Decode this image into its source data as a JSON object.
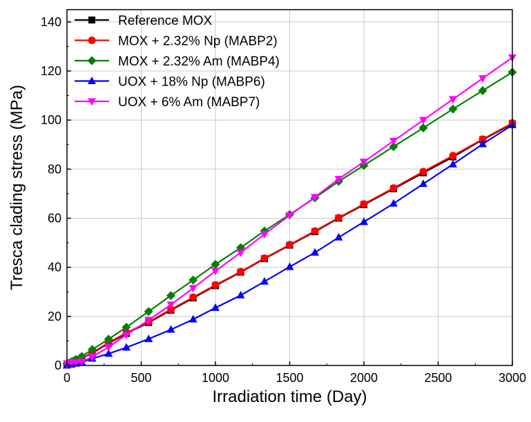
{
  "chart_data": {
    "type": "line",
    "xlabel": "Irradiation time (Day)",
    "ylabel": "Tresca clading stress (MPa)",
    "xlim": [
      0,
      3000
    ],
    "ylim": [
      0,
      145
    ],
    "xticks": [
      0,
      500,
      1000,
      1500,
      2000,
      2500,
      3000
    ],
    "yticks": [
      0,
      20,
      40,
      60,
      80,
      100,
      120,
      140
    ],
    "xtick_labels": [
      "0",
      "500",
      "1000",
      "1500",
      "2000",
      "2500",
      "3000"
    ],
    "ytick_labels": [
      "0",
      "20",
      "40",
      "60",
      "80",
      "100",
      "120",
      "140"
    ],
    "grid": true,
    "legend_position": "top-left",
    "series": [
      {
        "name": "Reference MOX",
        "color": "#000000",
        "marker": "square",
        "points": [
          [
            0,
            0.5
          ],
          [
            30,
            1.2
          ],
          [
            60,
            2
          ],
          [
            100,
            3
          ],
          [
            170,
            5
          ],
          [
            280,
            9
          ],
          [
            400,
            13
          ],
          [
            550,
            17.5
          ],
          [
            700,
            22.5
          ],
          [
            850,
            27.5
          ],
          [
            1000,
            32.5
          ],
          [
            1170,
            38
          ],
          [
            1330,
            43.5
          ],
          [
            1500,
            49
          ],
          [
            1670,
            54.5
          ],
          [
            1830,
            60
          ],
          [
            2000,
            65.5
          ],
          [
            2200,
            72
          ],
          [
            2400,
            78.5
          ],
          [
            2600,
            85
          ],
          [
            2800,
            92
          ],
          [
            3000,
            98.5
          ]
        ]
      },
      {
        "name": "MOX + 2.32% Np (MABP2)",
        "color": "#ff0000",
        "marker": "circle",
        "points": [
          [
            0,
            0.5
          ],
          [
            30,
            1.2
          ],
          [
            60,
            2
          ],
          [
            100,
            3
          ],
          [
            170,
            5.2
          ],
          [
            280,
            9.3
          ],
          [
            400,
            13.3
          ],
          [
            550,
            17.8
          ],
          [
            700,
            22.8
          ],
          [
            850,
            27.8
          ],
          [
            1000,
            32.8
          ],
          [
            1170,
            38.2
          ],
          [
            1330,
            43.7
          ],
          [
            1500,
            49.2
          ],
          [
            1670,
            54.8
          ],
          [
            1830,
            60.2
          ],
          [
            2000,
            65.8
          ],
          [
            2200,
            72.3
          ],
          [
            2400,
            79
          ],
          [
            2600,
            85.5
          ],
          [
            2800,
            92.2
          ],
          [
            3000,
            98.8
          ]
        ]
      },
      {
        "name": "MOX + 2.32% Am (MABP4)",
        "color": "#008000",
        "marker": "diamond",
        "points": [
          [
            0,
            0.7
          ],
          [
            30,
            1.5
          ],
          [
            60,
            2.5
          ],
          [
            100,
            3.7
          ],
          [
            170,
            6.5
          ],
          [
            280,
            10.7
          ],
          [
            400,
            15.6
          ],
          [
            550,
            22
          ],
          [
            700,
            28.5
          ],
          [
            850,
            34.8
          ],
          [
            1000,
            41.2
          ],
          [
            1170,
            48
          ],
          [
            1330,
            54.8
          ],
          [
            1500,
            61.5
          ],
          [
            1670,
            68.3
          ],
          [
            1830,
            75
          ],
          [
            2000,
            81.5
          ],
          [
            2200,
            89.2
          ],
          [
            2400,
            96.8
          ],
          [
            2600,
            104.5
          ],
          [
            2800,
            112
          ],
          [
            3000,
            119.5
          ]
        ]
      },
      {
        "name": "UOX + 18% Np (MABP6)",
        "color": "#0000ff",
        "marker": "triangle-up",
        "points": [
          [
            0,
            0
          ],
          [
            30,
            0.4
          ],
          [
            60,
            0.8
          ],
          [
            100,
            1.3
          ],
          [
            170,
            2.8
          ],
          [
            280,
            4.8
          ],
          [
            400,
            7.3
          ],
          [
            550,
            10.8
          ],
          [
            700,
            14.6
          ],
          [
            850,
            18.8
          ],
          [
            1000,
            23.5
          ],
          [
            1170,
            28.6
          ],
          [
            1330,
            34.2
          ],
          [
            1500,
            40.2
          ],
          [
            1670,
            46
          ],
          [
            1830,
            52.2
          ],
          [
            2000,
            58.5
          ],
          [
            2200,
            66
          ],
          [
            2400,
            74
          ],
          [
            2600,
            82
          ],
          [
            2800,
            90.2
          ],
          [
            3000,
            98
          ]
        ]
      },
      {
        "name": "UOX + 6% Am (MABP7)",
        "color": "#ff00ff",
        "marker": "triangle-down",
        "points": [
          [
            0,
            0.8
          ],
          [
            30,
            1.2
          ],
          [
            60,
            1.2
          ],
          [
            100,
            1.5
          ],
          [
            170,
            3.5
          ],
          [
            280,
            7.5
          ],
          [
            400,
            12.5
          ],
          [
            550,
            18.5
          ],
          [
            700,
            24.8
          ],
          [
            850,
            31.5
          ],
          [
            1000,
            38.5
          ],
          [
            1170,
            46
          ],
          [
            1330,
            53.5
          ],
          [
            1500,
            61.2
          ],
          [
            1670,
            68.6
          ],
          [
            1830,
            76
          ],
          [
            2000,
            83
          ],
          [
            2200,
            91.5
          ],
          [
            2400,
            100
          ],
          [
            2600,
            108.5
          ],
          [
            2800,
            117
          ],
          [
            3000,
            125.5
          ]
        ]
      }
    ]
  }
}
